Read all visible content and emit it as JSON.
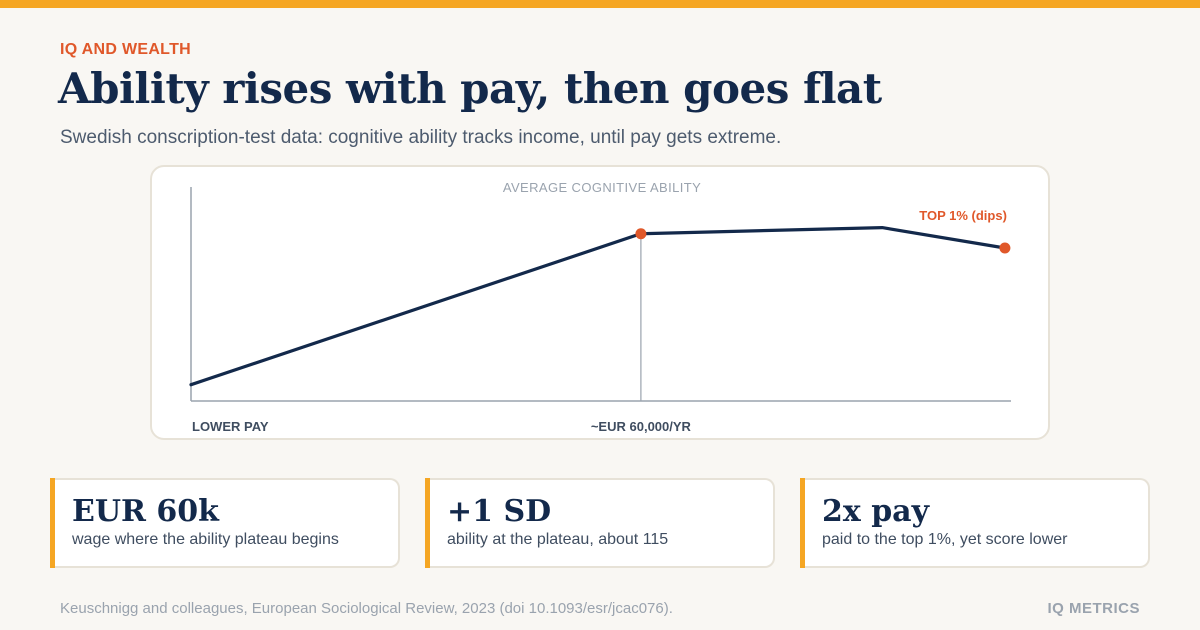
{
  "header": {
    "eyebrow": "IQ AND WEALTH",
    "title": "Ability rises with pay, then goes flat",
    "subtitle": "Swedish conscription-test data: cognitive ability tracks income, until pay gets extreme."
  },
  "colors": {
    "accent": "#f5a623",
    "highlight": "#e0582a",
    "navy": "#13294b",
    "axis": "#9aa3ae"
  },
  "chart_data": {
    "type": "line",
    "title": "",
    "ylabel": "AVERAGE COGNITIVE ABILITY",
    "xlabel": "",
    "x_labels": [
      "LOWER PAY",
      "~EUR 60,000/YR"
    ],
    "xlim": [
      0,
      100
    ],
    "ylim": [
      0,
      100
    ],
    "grid": false,
    "series": [
      {
        "points": [
          {
            "x": 0,
            "y": 8
          },
          {
            "x": 55,
            "y": 82
          },
          {
            "x": 84.5,
            "y": 85
          },
          {
            "x": 99.5,
            "y": 75
          }
        ]
      }
    ],
    "markers": [
      {
        "x": 55,
        "y": 82,
        "label": ""
      },
      {
        "x": 99.5,
        "y": 75,
        "label": "TOP 1% (dips)"
      }
    ],
    "reference_line_x": 55
  },
  "stats": [
    {
      "value": "EUR 60k",
      "desc": "wage where the ability plateau begins"
    },
    {
      "value": "+1 SD",
      "desc": "ability at the plateau, about 115"
    },
    {
      "value": "2x pay",
      "desc": "paid to the top 1%, yet score lower"
    }
  ],
  "footer": {
    "source": "Keuschnigg and colleagues, European Sociological Review, 2023 (doi 10.1093/esr/jcac076).",
    "brand": "IQ METRICS"
  }
}
